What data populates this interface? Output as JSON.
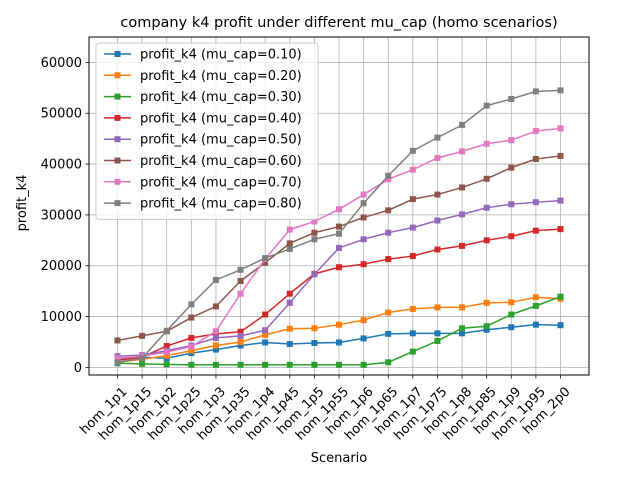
{
  "chart_data": {
    "type": "line",
    "title": "company k4 profit under different mu_cap (homo scenarios)",
    "xlabel": "Scenario",
    "ylabel": "profit_k4",
    "ylim": [
      -1500,
      65000
    ],
    "yticks": [
      0,
      10000,
      20000,
      30000,
      40000,
      50000,
      60000
    ],
    "grid": true,
    "legend_position": "top-left",
    "categories": [
      "hom_1p1",
      "hom_1p15",
      "hom_1p2",
      "hom_1p25",
      "hom_1p3",
      "hom_1p35",
      "hom_1p4",
      "hom_1p45",
      "hom_1p5",
      "hom_1p55",
      "hom_1p6",
      "hom_1p65",
      "hom_1p7",
      "hom_1p75",
      "hom_1p8",
      "hom_1p85",
      "hom_1p9",
      "hom_1p95",
      "hom_2p0"
    ],
    "series": [
      {
        "name": "profit_k4 (mu_cap=0.10)",
        "color": "#1f77b4",
        "values": [
          1700,
          2000,
          1800,
          2800,
          3500,
          4300,
          4900,
          4600,
          4800,
          4900,
          5700,
          6600,
          6700,
          6700,
          6700,
          7400,
          7900,
          8400,
          8300
        ]
      },
      {
        "name": "profit_k4 (mu_cap=0.20)",
        "color": "#ff7f0e",
        "values": [
          1000,
          1600,
          2300,
          3300,
          4300,
          5000,
          6400,
          7600,
          7700,
          8400,
          9300,
          10800,
          11500,
          11800,
          11800,
          12700,
          12800,
          13800,
          13500
        ]
      },
      {
        "name": "profit_k4 (mu_cap=0.30)",
        "color": "#2ca02c",
        "values": [
          800,
          700,
          600,
          500,
          500,
          500,
          500,
          500,
          500,
          500,
          500,
          1000,
          3100,
          5200,
          7700,
          8100,
          10400,
          12100,
          13900
        ]
      },
      {
        "name": "profit_k4 (mu_cap=0.40)",
        "color": "#d62728",
        "values": [
          1400,
          2000,
          4200,
          5800,
          6600,
          7000,
          10400,
          14500,
          18400,
          19700,
          20300,
          21300,
          21900,
          23200,
          23900,
          25000,
          25800,
          26900,
          27200
        ]
      },
      {
        "name": "profit_k4 (mu_cap=0.50)",
        "color": "#9467bd",
        "values": [
          2200,
          2400,
          3300,
          4300,
          5800,
          6200,
          7300,
          12700,
          18300,
          23500,
          25200,
          26500,
          27500,
          28900,
          30100,
          31400,
          32100,
          32500,
          32800
        ]
      },
      {
        "name": "profit_k4 (mu_cap=0.60)",
        "color": "#8c564b",
        "values": [
          5300,
          6200,
          7100,
          9800,
          12000,
          17000,
          20600,
          24400,
          26500,
          27700,
          29500,
          30900,
          33100,
          34000,
          35400,
          37100,
          39300,
          41000,
          41600
        ]
      },
      {
        "name": "profit_k4 (mu_cap=0.70)",
        "color": "#e377c2",
        "values": [
          1800,
          2200,
          3000,
          4100,
          7100,
          14500,
          21300,
          27100,
          28700,
          31100,
          34000,
          37000,
          38900,
          41200,
          42500,
          44000,
          44700,
          46500,
          47000
        ]
      },
      {
        "name": "profit_k4 (mu_cap=0.80)",
        "color": "#7f7f7f",
        "values": [
          1000,
          1800,
          7200,
          12400,
          17200,
          19200,
          21500,
          23300,
          25200,
          26300,
          32300,
          37700,
          42600,
          45200,
          47700,
          51500,
          52800,
          54300,
          54500
        ]
      }
    ]
  }
}
